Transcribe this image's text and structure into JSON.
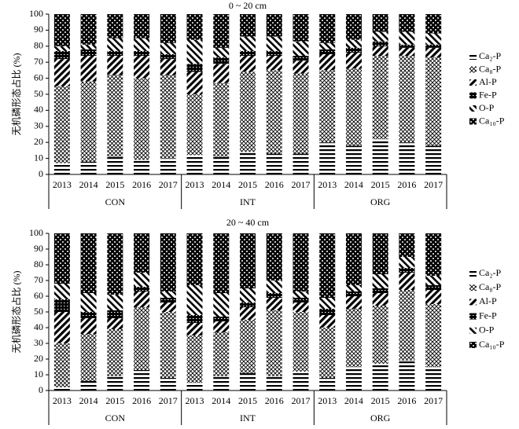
{
  "chart_data": [
    {
      "type": "bar",
      "stacked": true,
      "title": "0 ~ 20 cm",
      "y_label": "无机磷形态占比 (%)",
      "categories": [
        "2013",
        "2014",
        "2015",
        "2016",
        "2017",
        "2013",
        "2014",
        "2015",
        "2016",
        "2017",
        "2013",
        "2014",
        "2015",
        "2016",
        "2017"
      ],
      "groups": [
        "CON",
        "INT",
        "ORG"
      ],
      "ylim": [
        0,
        100
      ],
      "yticks": [
        0,
        10,
        20,
        30,
        40,
        50,
        60,
        70,
        80,
        90,
        100
      ],
      "series": [
        {
          "name": "Ca₂-P",
          "values": [
            7,
            8,
            11,
            9,
            10,
            12,
            11,
            14,
            13,
            13,
            20,
            18,
            22,
            20,
            18
          ]
        },
        {
          "name": "Ca₈-P",
          "values": [
            48,
            50,
            51,
            51,
            52,
            38,
            46,
            50,
            52,
            50,
            45,
            48,
            52,
            54,
            55
          ]
        },
        {
          "name": "Al-P",
          "values": [
            17,
            16,
            12,
            14,
            10,
            14,
            12,
            10,
            9,
            8,
            10,
            10,
            6,
            5,
            6
          ]
        },
        {
          "name": "Fe-P",
          "values": [
            5,
            4,
            3,
            3,
            3,
            5,
            4,
            3,
            3,
            3,
            3,
            3,
            3,
            2,
            2
          ]
        },
        {
          "name": "O-P",
          "values": [
            3,
            3,
            8,
            8,
            7,
            15,
            6,
            9,
            9,
            9,
            4,
            5,
            6,
            8,
            7
          ]
        },
        {
          "name": "Ca₁₀-P",
          "values": [
            20,
            19,
            15,
            15,
            18,
            16,
            21,
            14,
            14,
            17,
            18,
            16,
            11,
            11,
            12
          ]
        }
      ]
    },
    {
      "type": "bar",
      "stacked": true,
      "title": "20 ~ 40 cm",
      "y_label": "无机磷形态占比 (%)",
      "categories": [
        "2013",
        "2014",
        "2015",
        "2016",
        "2017",
        "2013",
        "2014",
        "2015",
        "2016",
        "2017",
        "2013",
        "2014",
        "2015",
        "2016",
        "2017"
      ],
      "groups": [
        "CON",
        "INT",
        "ORG"
      ],
      "ylim": [
        0,
        100
      ],
      "yticks": [
        0,
        10,
        20,
        30,
        40,
        50,
        60,
        70,
        80,
        90,
        100
      ],
      "series": [
        {
          "name": "Ca₂-P",
          "values": [
            2,
            6,
            9,
            13,
            8,
            5,
            9,
            11,
            9,
            12,
            8,
            15,
            17,
            19,
            15
          ]
        },
        {
          "name": "Ca₈-P",
          "values": [
            28,
            30,
            30,
            40,
            42,
            30,
            28,
            34,
            42,
            38,
            32,
            37,
            37,
            45,
            40
          ]
        },
        {
          "name": "Al-P",
          "values": [
            20,
            10,
            7,
            10,
            6,
            8,
            7,
            8,
            8,
            6,
            8,
            8,
            8,
            11,
            9
          ]
        },
        {
          "name": "Fe-P",
          "values": [
            8,
            4,
            5,
            3,
            3,
            5,
            3,
            3,
            3,
            3,
            4,
            3,
            3,
            3,
            3
          ]
        },
        {
          "name": "O-P",
          "values": [
            10,
            12,
            10,
            9,
            4,
            19,
            15,
            9,
            8,
            4,
            7,
            4,
            9,
            7,
            6
          ]
        },
        {
          "name": "Ca₁₀-P",
          "values": [
            32,
            38,
            39,
            25,
            37,
            33,
            38,
            35,
            30,
            37,
            41,
            33,
            26,
            15,
            27
          ]
        }
      ]
    }
  ]
}
